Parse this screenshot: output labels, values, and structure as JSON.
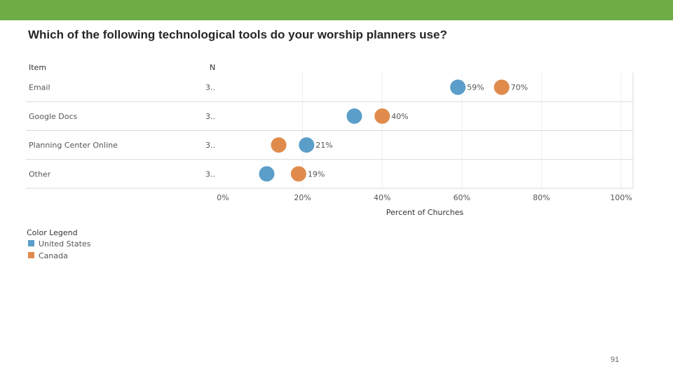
{
  "header_bar": {
    "color": "#6fac46"
  },
  "title": "Which of the following technological tools do your worship planners use?",
  "page_number": "91",
  "chart_data": {
    "type": "scatter",
    "orientation": "horizontal-dot-plot",
    "table_headers": {
      "item": "Item",
      "n": "N"
    },
    "categories": [
      "Email",
      "Google Docs",
      "Planning Center Online",
      "Other"
    ],
    "n_labels": [
      "3..",
      "3..",
      "3..",
      "3.."
    ],
    "series": [
      {
        "name": "United States",
        "color": "#5b9ec9",
        "values": [
          59,
          33,
          21,
          11
        ]
      },
      {
        "name": "Canada",
        "color": "#e08b4c",
        "values": [
          70,
          40,
          14,
          19
        ]
      }
    ],
    "data_labels": [
      "59%",
      "70%",
      "40%",
      "21%",
      "19%"
    ],
    "data_label_points": [
      {
        "category": 0,
        "series": 0
      },
      {
        "category": 0,
        "series": 1
      },
      {
        "category": 1,
        "series": 1
      },
      {
        "category": 2,
        "series": 0
      },
      {
        "category": 3,
        "series": 1
      }
    ],
    "xlabel": "Percent of Churches",
    "xlim": [
      0,
      100
    ],
    "xticks": [
      0,
      20,
      40,
      60,
      80,
      100
    ],
    "xtick_labels": [
      "0%",
      "20%",
      "40%",
      "60%",
      "80%",
      "100%"
    ],
    "legend": {
      "title": "Color Legend",
      "placement": "bottom-left"
    },
    "grid": true
  }
}
